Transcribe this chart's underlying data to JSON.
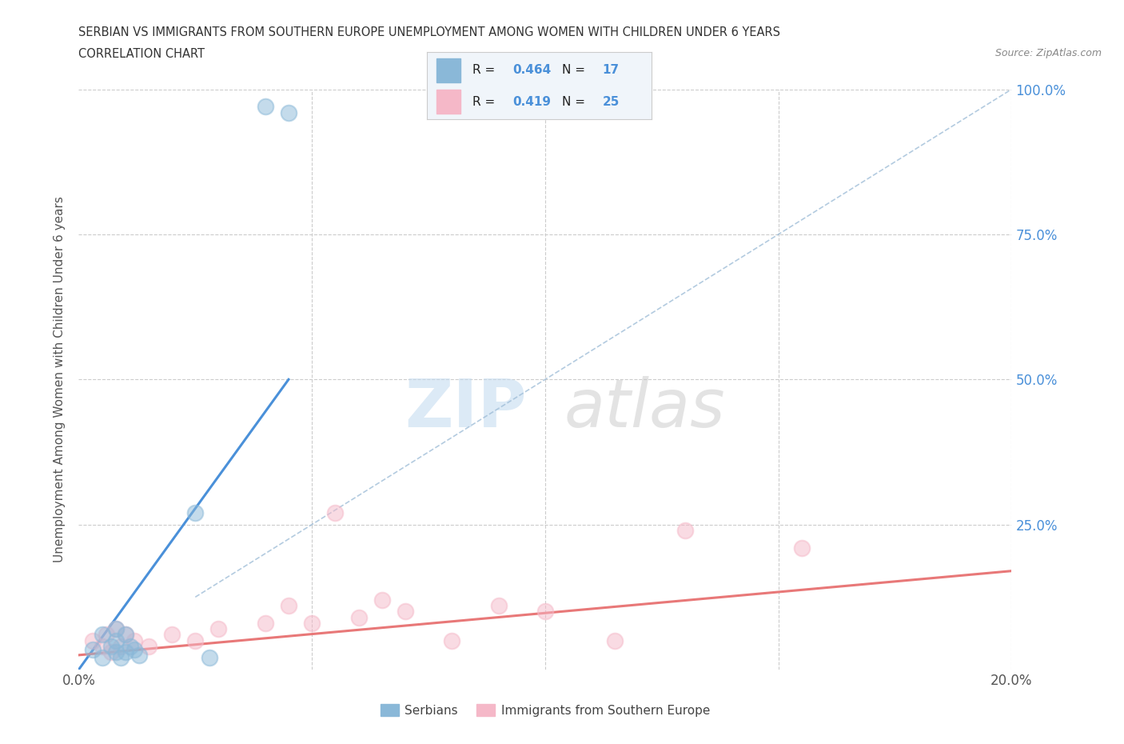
{
  "title_line1": "SERBIAN VS IMMIGRANTS FROM SOUTHERN EUROPE UNEMPLOYMENT AMONG WOMEN WITH CHILDREN UNDER 6 YEARS",
  "title_line2": "CORRELATION CHART",
  "source": "Source: ZipAtlas.com",
  "ylabel": "Unemployment Among Women with Children Under 6 years",
  "xlim": [
    0.0,
    0.2
  ],
  "ylim": [
    0.0,
    1.0
  ],
  "xticks": [
    0.0,
    0.05,
    0.1,
    0.15,
    0.2
  ],
  "yticks": [
    0.0,
    0.25,
    0.5,
    0.75,
    1.0
  ],
  "xtick_labels": [
    "0.0%",
    "",
    "",
    "",
    "20.0%"
  ],
  "ytick_labels": [
    "",
    "25.0%",
    "50.0%",
    "75.0%",
    "100.0%"
  ],
  "serbian_color": "#8AB8D8",
  "immigrant_color": "#F5B8C8",
  "serbian_R": 0.464,
  "serbian_N": 17,
  "immigrant_R": 0.419,
  "immigrant_N": 25,
  "background_color": "#FFFFFF",
  "watermark_zip": "ZIP",
  "watermark_atlas": "atlas",
  "grid_color": "#CCCCCC",
  "serbian_scatter_x": [
    0.003,
    0.005,
    0.005,
    0.007,
    0.008,
    0.008,
    0.008,
    0.009,
    0.01,
    0.01,
    0.011,
    0.012,
    0.013,
    0.025,
    0.028,
    0.04,
    0.045
  ],
  "serbian_scatter_y": [
    0.035,
    0.02,
    0.06,
    0.04,
    0.03,
    0.05,
    0.07,
    0.02,
    0.03,
    0.06,
    0.04,
    0.035,
    0.025,
    0.27,
    0.02,
    0.97,
    0.96
  ],
  "immigrant_scatter_x": [
    0.003,
    0.005,
    0.006,
    0.007,
    0.008,
    0.009,
    0.01,
    0.012,
    0.015,
    0.02,
    0.025,
    0.03,
    0.04,
    0.045,
    0.05,
    0.055,
    0.06,
    0.065,
    0.07,
    0.08,
    0.09,
    0.1,
    0.115,
    0.13,
    0.155
  ],
  "immigrant_scatter_y": [
    0.05,
    0.04,
    0.06,
    0.03,
    0.07,
    0.04,
    0.06,
    0.05,
    0.04,
    0.06,
    0.05,
    0.07,
    0.08,
    0.11,
    0.08,
    0.27,
    0.09,
    0.12,
    0.1,
    0.05,
    0.11,
    0.1,
    0.05,
    0.24,
    0.21
  ],
  "serbian_line_x": [
    0.0,
    0.045
  ],
  "serbian_line_y": [
    0.0,
    0.5
  ],
  "immigrant_line_x": [
    0.0,
    0.2
  ],
  "immigrant_line_y": [
    0.025,
    0.17
  ],
  "diag_line_x": [
    0.025,
    0.2
  ],
  "diag_line_y": [
    0.125,
    1.0
  ]
}
